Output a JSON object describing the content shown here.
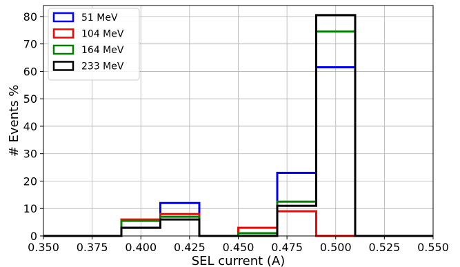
{
  "chart_data": {
    "type": "histogram-step",
    "xlabel": "SEL current (A)",
    "ylabel": "# Events %",
    "xlim": [
      0.35,
      0.55
    ],
    "ylim": [
      0,
      84
    ],
    "xticks": [
      "0.350",
      "0.375",
      "0.400",
      "0.425",
      "0.450",
      "0.475",
      "0.500",
      "0.525",
      "0.550"
    ],
    "yticks": [
      "0",
      "10",
      "20",
      "30",
      "40",
      "50",
      "60",
      "70",
      "80"
    ],
    "grid": true,
    "legend_position": "top-left",
    "bin_edges": [
      0.35,
      0.37,
      0.39,
      0.41,
      0.43,
      0.45,
      0.47,
      0.49,
      0.51,
      0.53,
      0.55
    ],
    "series": [
      {
        "name": "51 MeV",
        "color": "#0000ff",
        "values": [
          0,
          0,
          3,
          12,
          0,
          0,
          23,
          61.5,
          0,
          0
        ]
      },
      {
        "name": "104 MeV",
        "color": "#ff0000",
        "values": [
          0,
          0,
          6,
          8,
          0,
          3,
          9,
          0,
          0,
          0
        ]
      },
      {
        "name": "164 MeV",
        "color": "#008000",
        "values": [
          0,
          0,
          5.5,
          7,
          0,
          1,
          12.5,
          74.5,
          0,
          0
        ]
      },
      {
        "name": "233 MeV",
        "color": "#000000",
        "values": [
          0,
          0,
          3,
          6,
          0,
          0,
          11,
          80.5,
          0,
          0
        ]
      }
    ]
  }
}
